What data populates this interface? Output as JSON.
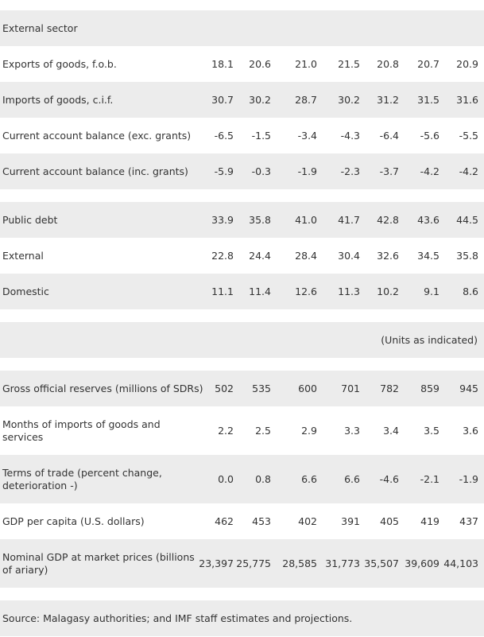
{
  "rows": [
    {
      "label": "External sector",
      "values": []
    },
    {
      "label": "Exports of goods, f.o.b.",
      "values": [
        "18.1",
        "20.6",
        "21.0",
        "21.5",
        "20.8",
        "20.7",
        "20.9"
      ]
    },
    {
      "label": "Imports of goods, c.i.f.",
      "values": [
        "30.7",
        "30.2",
        "28.7",
        "30.2",
        "31.2",
        "31.5",
        "31.6"
      ]
    },
    {
      "label": "Current account balance (exc. grants)",
      "values": [
        "-6.5",
        "-1.5",
        "-3.4",
        "-4.3",
        "-6.4",
        "-5.6",
        "-5.5"
      ]
    },
    {
      "label": "Current account balance (inc. grants)",
      "values": [
        "-5.9",
        "-0.3",
        "-1.9",
        "-2.3",
        "-3.7",
        "-4.2",
        "-4.2"
      ]
    },
    {
      "label": "Public debt",
      "values": [
        "33.9",
        "35.8",
        "41.0",
        "41.7",
        "42.8",
        "43.6",
        "44.5"
      ]
    },
    {
      "label": "External",
      "values": [
        "22.8",
        "24.4",
        "28.4",
        "30.4",
        "32.6",
        "34.5",
        "35.8"
      ]
    },
    {
      "label": "Domestic",
      "values": [
        "11.1",
        "11.4",
        "12.6",
        "11.3",
        "10.2",
        "9.1",
        "8.6"
      ]
    },
    {
      "label": "",
      "values": []
    },
    {
      "label": "",
      "units": "(Units as indicated)",
      "values": []
    },
    {
      "label": "Gross official reserves (millions of SDRs)",
      "values": [
        "502",
        "535",
        "600",
        "701",
        "782",
        "859",
        "945"
      ]
    },
    {
      "label": "Months of imports of goods and",
      "label2": "services",
      "values": [
        "2.2",
        "2.5",
        "2.9",
        "3.3",
        "3.4",
        "3.5",
        "3.6"
      ]
    },
    {
      "label": "Terms of trade (percent change,",
      "label2": "deterioration -)",
      "values": [
        "0.0",
        "0.8",
        "6.6",
        "6.6",
        "-4.6",
        "-2.1",
        "-1.9"
      ]
    },
    {
      "label": "GDP per capita (U.S. dollars)",
      "values": [
        "462",
        "453",
        "402",
        "391",
        "405",
        "419",
        "437"
      ]
    },
    {
      "label": "Nominal GDP at market prices (billions",
      "label2": "of ariary)",
      "values": [
        "23,397",
        "25,775",
        "28,585",
        "31,773",
        "35,507",
        "39,609",
        "44,103"
      ]
    },
    {
      "label": "Source: Malagasy authorities; and IMF staff estimates and projections.",
      "values": []
    }
  ]
}
